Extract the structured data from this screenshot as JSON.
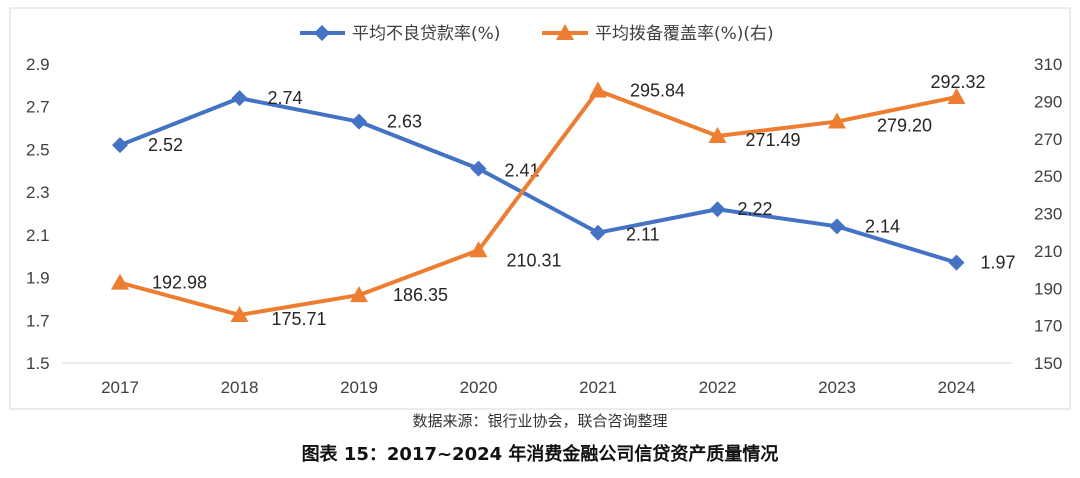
{
  "chart_data": {
    "type": "line",
    "categories": [
      "2017",
      "2018",
      "2019",
      "2020",
      "2021",
      "2022",
      "2023",
      "2024"
    ],
    "series": [
      {
        "name": "平均不良贷款率(%)",
        "axis": "left",
        "color": "#4472C4",
        "marker": "diamond",
        "values": [
          2.52,
          2.74,
          2.63,
          2.41,
          2.11,
          2.22,
          2.14,
          1.97
        ],
        "labels": [
          "2.52",
          "2.74",
          "2.63",
          "2.41",
          "2.11",
          "2.22",
          "2.14",
          "1.97"
        ]
      },
      {
        "name": "平均拨备覆盖率(%)(右)",
        "axis": "right",
        "color": "#ED7D31",
        "marker": "triangle",
        "values": [
          192.98,
          175.71,
          186.35,
          210.31,
          295.84,
          271.49,
          279.2,
          292.32
        ],
        "labels": [
          "192.98",
          "175.71",
          "186.35",
          "210.31",
          "295.84",
          "271.49",
          "279.20",
          "292.32"
        ]
      }
    ],
    "y_left": {
      "ticks": [
        "1.5",
        "1.7",
        "1.9",
        "2.1",
        "2.3",
        "2.5",
        "2.7",
        "2.9"
      ],
      "lim": [
        1.5,
        2.9
      ]
    },
    "y_right": {
      "ticks": [
        "150",
        "170",
        "190",
        "210",
        "230",
        "250",
        "270",
        "290",
        "310"
      ],
      "lim": [
        150,
        310
      ]
    },
    "legend_position": "top-center",
    "grid": false
  },
  "source_note": "数据来源：银行业协会，联合咨询整理",
  "figure_caption": "图表 15：2017~2024 年消费金融公司信贷资产质量情况"
}
